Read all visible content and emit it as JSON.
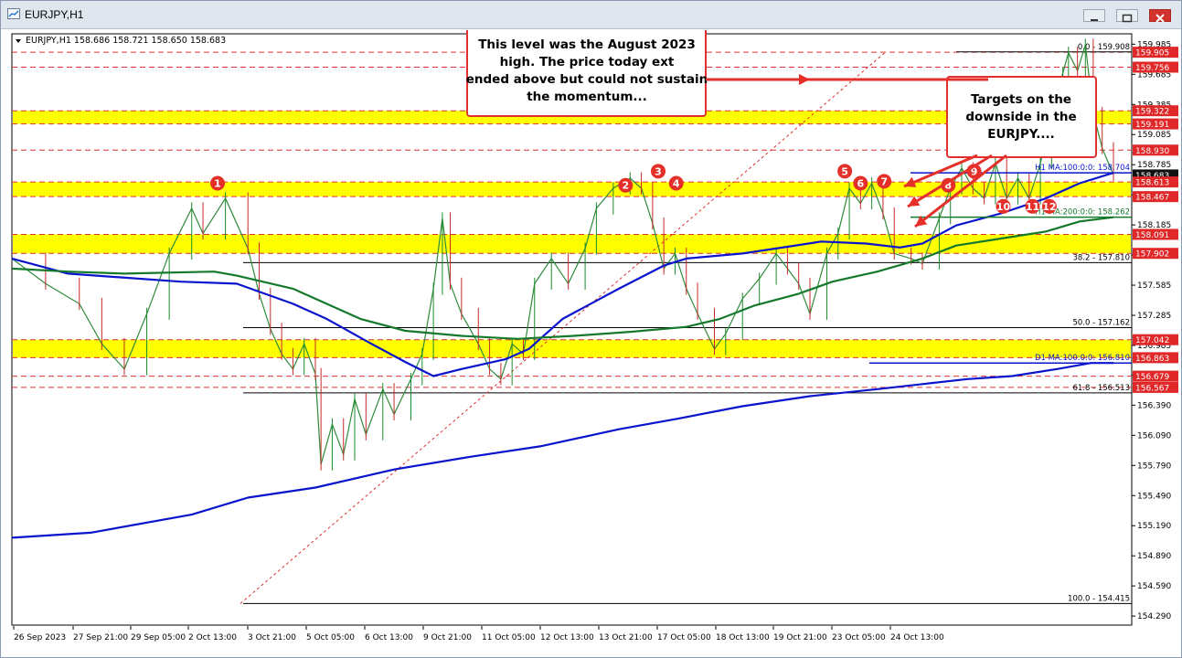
{
  "window": {
    "title": "EURJPY,H1",
    "header": "EURJPY,H1  158.686 158.721 158.650 158.683"
  },
  "chart_data": {
    "type": "line",
    "symbol": "EURJPY",
    "timeframe": "H1",
    "ohlc": {
      "open": 158.686,
      "high": 158.721,
      "low": 158.65,
      "close": 158.683
    },
    "ylim": [
      154.29,
      160.07
    ],
    "y_ticks": [
      159.985,
      159.685,
      159.385,
      159.085,
      158.785,
      158.485,
      158.185,
      157.885,
      157.585,
      157.285,
      156.985,
      156.69,
      156.39,
      156.09,
      155.79,
      155.49,
      155.19,
      154.89,
      154.59,
      154.29
    ],
    "y_tick_labels": [
      "159.985",
      "159.685",
      "159.385",
      "159.085",
      "158.785",
      "158.485",
      "158.185",
      "157.885",
      "157.585",
      "157.285",
      "156.985",
      "156.690",
      "156.390",
      "156.090",
      "155.790",
      "155.490",
      "155.190",
      "154.890",
      "154.590",
      "154.290"
    ],
    "x_tick_labels": [
      "26 Sep 2023",
      "27 Sep 21:00",
      "29 Sep 05:00",
      "2 Oct 13:00",
      "3 Oct 21:00",
      "5 Oct 05:00",
      "6 Oct 13:00",
      "9 Oct 21:00",
      "11 Oct 05:00",
      "12 Oct 13:00",
      "13 Oct 21:00",
      "17 Oct 05:00",
      "18 Oct 13:00",
      "19 Oct 21:00",
      "23 Oct 05:00",
      "24 Oct 13:00"
    ],
    "price_path": [
      [
        0,
        157.85
      ],
      [
        3,
        157.6
      ],
      [
        6,
        157.4
      ],
      [
        8,
        157.0
      ],
      [
        10,
        156.75
      ],
      [
        12,
        157.3
      ],
      [
        14,
        157.9
      ],
      [
        16,
        158.35
      ],
      [
        17,
        158.1
      ],
      [
        19,
        158.45
      ],
      [
        21,
        157.95
      ],
      [
        22,
        157.5
      ],
      [
        23,
        157.15
      ],
      [
        24,
        156.9
      ],
      [
        25,
        156.75
      ],
      [
        26,
        157.0
      ],
      [
        27,
        156.7
      ],
      [
        27.5,
        155.8
      ],
      [
        28.5,
        156.2
      ],
      [
        29.5,
        155.9
      ],
      [
        30.5,
        156.45
      ],
      [
        31.5,
        156.1
      ],
      [
        33,
        156.55
      ],
      [
        34,
        156.3
      ],
      [
        35.5,
        156.65
      ],
      [
        36.5,
        156.9
      ],
      [
        37.5,
        157.55
      ],
      [
        38.3,
        158.25
      ],
      [
        39,
        157.6
      ],
      [
        40,
        157.3
      ],
      [
        41.5,
        157.0
      ],
      [
        42.5,
        156.75
      ],
      [
        43.5,
        156.65
      ],
      [
        44.5,
        157.0
      ],
      [
        45.5,
        156.9
      ],
      [
        46.5,
        157.6
      ],
      [
        48,
        157.85
      ],
      [
        49.5,
        157.6
      ],
      [
        51,
        157.95
      ],
      [
        52,
        158.35
      ],
      [
        53.5,
        158.55
      ],
      [
        55,
        158.65
      ],
      [
        56,
        158.55
      ],
      [
        57,
        158.2
      ],
      [
        58,
        157.75
      ],
      [
        59,
        157.9
      ],
      [
        60,
        157.55
      ],
      [
        61,
        157.3
      ],
      [
        62.5,
        156.95
      ],
      [
        63.5,
        157.1
      ],
      [
        65,
        157.45
      ],
      [
        66.5,
        157.65
      ],
      [
        68,
        157.9
      ],
      [
        69,
        157.75
      ],
      [
        70,
        157.6
      ],
      [
        71,
        157.3
      ],
      [
        72.5,
        157.9
      ],
      [
        73.5,
        158.1
      ],
      [
        74.5,
        158.55
      ],
      [
        75.5,
        158.4
      ],
      [
        76.5,
        158.6
      ],
      [
        77.5,
        158.3
      ],
      [
        78.5,
        157.9
      ],
      [
        80,
        157.85
      ],
      [
        81,
        157.8
      ],
      [
        82.5,
        158.25
      ],
      [
        83.5,
        158.55
      ],
      [
        84.5,
        158.75
      ],
      [
        85.5,
        158.55
      ],
      [
        86.5,
        158.45
      ],
      [
        87.5,
        158.8
      ],
      [
        88.5,
        158.45
      ],
      [
        89.5,
        158.65
      ],
      [
        90.5,
        158.45
      ],
      [
        91.5,
        158.8
      ],
      [
        92.5,
        159.3
      ],
      [
        93.5,
        159.7
      ],
      [
        94,
        159.9
      ],
      [
        94.8,
        159.72
      ],
      [
        95.5,
        159.98
      ],
      [
        96.2,
        159.3
      ],
      [
        97,
        158.95
      ],
      [
        98,
        158.683
      ]
    ],
    "series": [
      {
        "name": "H1 MA:100:0:0",
        "last": 158.704,
        "color": "#0a14cc",
        "points": [
          [
            0,
            157.85
          ],
          [
            5,
            157.7
          ],
          [
            15,
            157.62
          ],
          [
            20,
            157.6
          ],
          [
            25,
            157.4
          ],
          [
            28,
            157.25
          ],
          [
            32,
            157.0
          ],
          [
            35,
            156.82
          ],
          [
            37.5,
            156.68
          ],
          [
            40,
            156.75
          ],
          [
            44,
            156.85
          ],
          [
            46,
            156.95
          ],
          [
            49,
            157.25
          ],
          [
            54,
            157.55
          ],
          [
            58,
            157.78
          ],
          [
            60,
            157.85
          ],
          [
            65,
            157.9
          ],
          [
            68,
            157.95
          ],
          [
            72,
            158.02
          ],
          [
            76,
            158.0
          ],
          [
            79,
            157.96
          ],
          [
            81,
            158.0
          ],
          [
            84,
            158.18
          ],
          [
            88,
            158.3
          ],
          [
            92,
            158.45
          ],
          [
            95,
            158.6
          ],
          [
            98,
            158.704
          ]
        ]
      },
      {
        "name": "H1 MA:200:0:0",
        "last": 158.262,
        "color": "#15792c",
        "points": [
          [
            0,
            157.75
          ],
          [
            5,
            157.72
          ],
          [
            10,
            157.7
          ],
          [
            18,
            157.72
          ],
          [
            20,
            157.68
          ],
          [
            25,
            157.55
          ],
          [
            28,
            157.4
          ],
          [
            31,
            157.25
          ],
          [
            35,
            157.13
          ],
          [
            40,
            157.08
          ],
          [
            45,
            157.05
          ],
          [
            50,
            157.08
          ],
          [
            55,
            157.12
          ],
          [
            60,
            157.17
          ],
          [
            63,
            157.25
          ],
          [
            66,
            157.38
          ],
          [
            70,
            157.5
          ],
          [
            73,
            157.62
          ],
          [
            77,
            157.72
          ],
          [
            81,
            157.85
          ],
          [
            84,
            157.98
          ],
          [
            88,
            158.05
          ],
          [
            92,
            158.12
          ],
          [
            95,
            158.22
          ],
          [
            98,
            158.262
          ]
        ]
      },
      {
        "name": "D1 MA:100:0:0",
        "last": 156.81,
        "color": "#0a14cc",
        "points": [
          [
            0,
            155.07
          ],
          [
            7,
            155.12
          ],
          [
            16,
            155.3
          ],
          [
            21,
            155.47
          ],
          [
            27,
            155.57
          ],
          [
            34,
            155.75
          ],
          [
            41,
            155.88
          ],
          [
            47,
            155.98
          ],
          [
            54,
            156.15
          ],
          [
            59,
            156.25
          ],
          [
            65,
            156.38
          ],
          [
            71,
            156.48
          ],
          [
            77,
            156.55
          ],
          [
            81,
            156.6
          ],
          [
            85,
            156.65
          ],
          [
            89,
            156.68
          ],
          [
            93,
            156.75
          ],
          [
            96,
            156.81
          ],
          [
            98,
            156.81
          ]
        ]
      }
    ],
    "fibonacci": [
      {
        "label": "0.0 - 159.908",
        "value": 159.908
      },
      {
        "label": "38.2 - 157.810",
        "value": 157.81
      },
      {
        "label": "50.0 - 157.162",
        "value": 157.162
      },
      {
        "label": "61.8 - 156.513",
        "value": 156.513
      },
      {
        "label": "100.0 - 154.415",
        "value": 154.415
      }
    ],
    "support_resistance_zones": [
      {
        "high": 159.322,
        "low": 159.191
      },
      {
        "high": 158.613,
        "low": 158.467
      },
      {
        "high": 158.091,
        "low": 157.902
      },
      {
        "high": 157.042,
        "low": 156.863
      }
    ],
    "dashed_levels": [
      159.905,
      159.756,
      158.93,
      156.679,
      156.567
    ],
    "price_boxes": [
      {
        "value": 159.985,
        "label": "159.985",
        "style": "tick"
      },
      {
        "value": 159.905,
        "label": "159.905",
        "style": "red"
      },
      {
        "value": 159.756,
        "label": "159.756",
        "style": "red"
      },
      {
        "value": 159.322,
        "label": "159.322",
        "style": "red"
      },
      {
        "value": 159.191,
        "label": "159.191",
        "style": "red"
      },
      {
        "value": 158.93,
        "label": "158.930",
        "style": "red"
      },
      {
        "value": 158.683,
        "label": "158.683",
        "style": "dark"
      },
      {
        "value": 158.613,
        "label": "158.613",
        "style": "red"
      },
      {
        "value": 158.467,
        "label": "158.467",
        "style": "red"
      },
      {
        "value": 158.091,
        "label": "158.091",
        "style": "red"
      },
      {
        "value": 157.902,
        "label": "157.902",
        "style": "red"
      },
      {
        "value": 157.042,
        "label": "157.042",
        "style": "red"
      },
      {
        "value": 156.863,
        "label": "156.863",
        "style": "red"
      },
      {
        "value": 156.679,
        "label": "156.679",
        "style": "red"
      },
      {
        "value": 156.567,
        "label": "156.567",
        "style": "red"
      }
    ],
    "ma_labels": [
      {
        "text": "H1 MA:100:0:0: 158.704",
        "value": 158.704
      },
      {
        "text": "H1 MA:200:0:0: 158.262",
        "value": 158.262
      },
      {
        "text": "D1 MA:100:0:0: 156.810",
        "value": 156.81
      }
    ],
    "markers": [
      {
        "label": "1",
        "x": 18.3,
        "value": 158.6
      },
      {
        "label": "2",
        "x": 54.6,
        "value": 158.58
      },
      {
        "label": "3",
        "x": 57.5,
        "value": 158.72
      },
      {
        "label": "4",
        "x": 59.1,
        "value": 158.6
      },
      {
        "label": "5",
        "x": 74.1,
        "value": 158.72
      },
      {
        "label": "6",
        "x": 75.5,
        "value": 158.6
      },
      {
        "label": "7",
        "x": 77.6,
        "value": 158.62
      },
      {
        "label": "8",
        "x": 83.3,
        "value": 158.58
      },
      {
        "label": "9",
        "x": 85.6,
        "value": 158.72
      },
      {
        "label": "10",
        "x": 88.2,
        "value": 158.37
      },
      {
        "label": "11",
        "x": 90.8,
        "value": 158.37
      },
      {
        "label": "12",
        "x": 92.3,
        "value": 158.37
      }
    ],
    "annotations": [
      "This level was the August 2023 high.  The price today extended above but could not sustain the momentum...",
      "Targets on the downside in the EURJPY...."
    ]
  }
}
